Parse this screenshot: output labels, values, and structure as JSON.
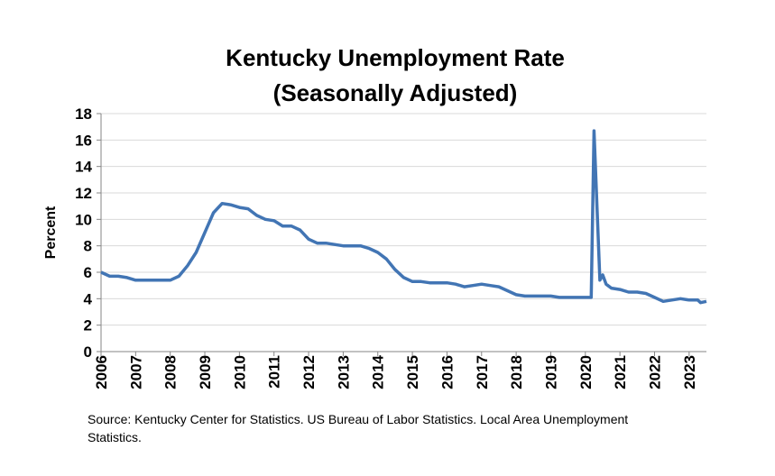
{
  "chart_data": {
    "type": "line",
    "title": [
      "Kentucky Unemployment Rate",
      "(Seasonally Adjusted)"
    ],
    "xlabel": "",
    "ylabel": "Percent",
    "xlim": [
      2006,
      2023.5
    ],
    "ylim": [
      0,
      18
    ],
    "yticks": [
      0,
      2,
      4,
      6,
      8,
      10,
      12,
      14,
      16,
      18
    ],
    "xticks": [
      "2006",
      "2007",
      "2008",
      "2009",
      "2010",
      "2011",
      "2012",
      "2013",
      "2014",
      "2015",
      "2016",
      "2017",
      "2018",
      "2019",
      "2020",
      "2021",
      "2022",
      "2023"
    ],
    "grid": true,
    "line_color": "#4275B4",
    "series": [
      {
        "x": [
          2006.0,
          2006.25,
          2006.5,
          2006.75,
          2007.0,
          2007.25,
          2007.5,
          2007.75,
          2008.0,
          2008.25,
          2008.5,
          2008.75,
          2009.0,
          2009.25,
          2009.5,
          2009.75,
          2010.0,
          2010.25,
          2010.5,
          2010.75,
          2011.0,
          2011.25,
          2011.5,
          2011.75,
          2012.0,
          2012.25,
          2012.5,
          2012.75,
          2013.0,
          2013.25,
          2013.5,
          2013.75,
          2014.0,
          2014.25,
          2014.5,
          2014.75,
          2015.0,
          2015.25,
          2015.5,
          2015.75,
          2016.0,
          2016.25,
          2016.5,
          2016.75,
          2017.0,
          2017.25,
          2017.5,
          2017.75,
          2018.0,
          2018.25,
          2018.5,
          2018.75,
          2019.0,
          2019.25,
          2019.5,
          2019.75,
          2020.0,
          2020.17,
          2020.25,
          2020.42,
          2020.5,
          2020.6,
          2020.75,
          2021.0,
          2021.25,
          2021.5,
          2021.75,
          2022.0,
          2022.25,
          2022.5,
          2022.75,
          2023.0,
          2023.25,
          2023.33,
          2023.5
        ],
        "y": [
          6.0,
          5.7,
          5.7,
          5.6,
          5.4,
          5.4,
          5.4,
          5.4,
          5.4,
          5.7,
          6.5,
          7.5,
          9.0,
          10.5,
          11.2,
          11.1,
          10.9,
          10.8,
          10.3,
          10.0,
          9.9,
          9.5,
          9.5,
          9.2,
          8.5,
          8.2,
          8.2,
          8.1,
          8.0,
          8.0,
          8.0,
          7.8,
          7.5,
          7.0,
          6.2,
          5.6,
          5.3,
          5.3,
          5.2,
          5.2,
          5.2,
          5.1,
          4.9,
          5.0,
          5.1,
          5.0,
          4.9,
          4.6,
          4.3,
          4.2,
          4.2,
          4.2,
          4.2,
          4.1,
          4.1,
          4.1,
          4.1,
          4.1,
          16.7,
          5.4,
          5.8,
          5.1,
          4.8,
          4.7,
          4.5,
          4.5,
          4.4,
          4.1,
          3.8,
          3.9,
          4.0,
          3.9,
          3.9,
          3.7,
          3.8
        ]
      }
    ]
  },
  "source": "Source: Kentucky Center for Statistics. US Bureau of Labor Statistics. Local Area Unemployment Statistics."
}
